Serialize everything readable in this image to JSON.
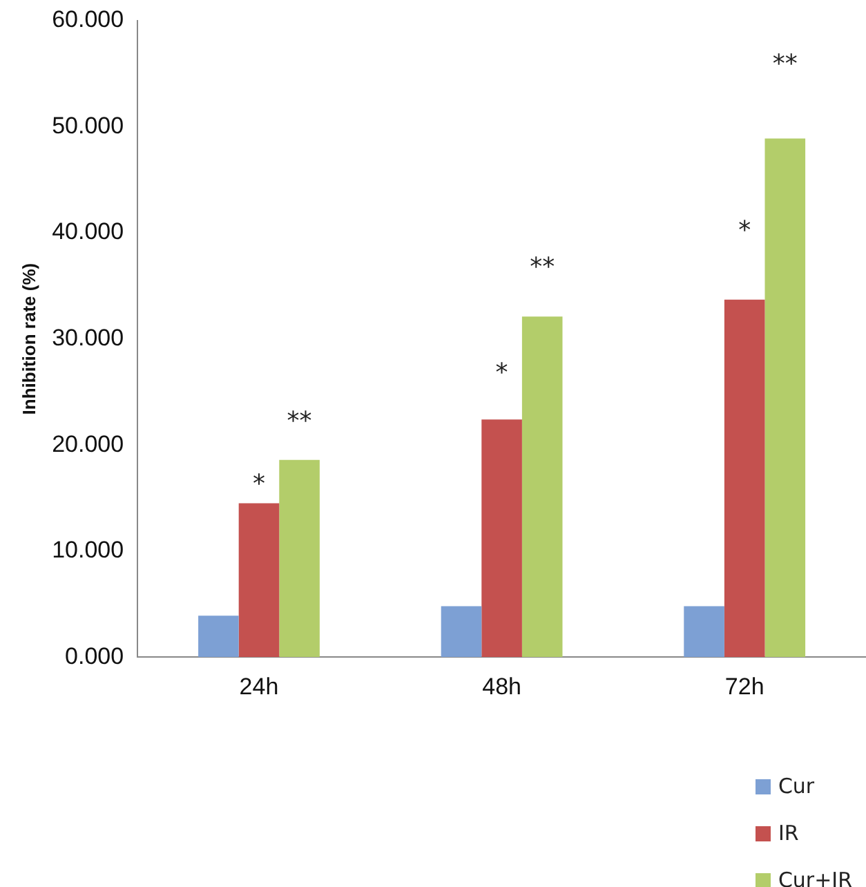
{
  "chart_data": {
    "type": "bar",
    "ylabel": "Inhibition rate (%)",
    "categories": [
      "24h",
      "48h",
      "72h"
    ],
    "series": [
      {
        "name": "Cur",
        "color": "#7da0d4",
        "values": [
          3.9,
          4.8,
          4.8
        ]
      },
      {
        "name": "IR",
        "color": "#c4514f",
        "values": [
          14.5,
          22.4,
          33.7
        ]
      },
      {
        "name": "Cur+IR",
        "color": "#b3cd6a",
        "values": [
          18.6,
          32.1,
          48.9
        ]
      }
    ],
    "ylim": [
      0,
      60
    ],
    "yticks": [
      {
        "value": 0,
        "label": "0.000"
      },
      {
        "value": 10,
        "label": "10.000"
      },
      {
        "value": 20,
        "label": "20.000"
      },
      {
        "value": 30,
        "label": "30.000"
      },
      {
        "value": 40,
        "label": "40.000"
      },
      {
        "value": 50,
        "label": "50.000"
      },
      {
        "value": 60,
        "label": "60.000"
      }
    ],
    "annotations": [
      "*",
      "**",
      "*",
      "**",
      "*",
      "**"
    ],
    "grid": false,
    "legend": "bottom right"
  }
}
